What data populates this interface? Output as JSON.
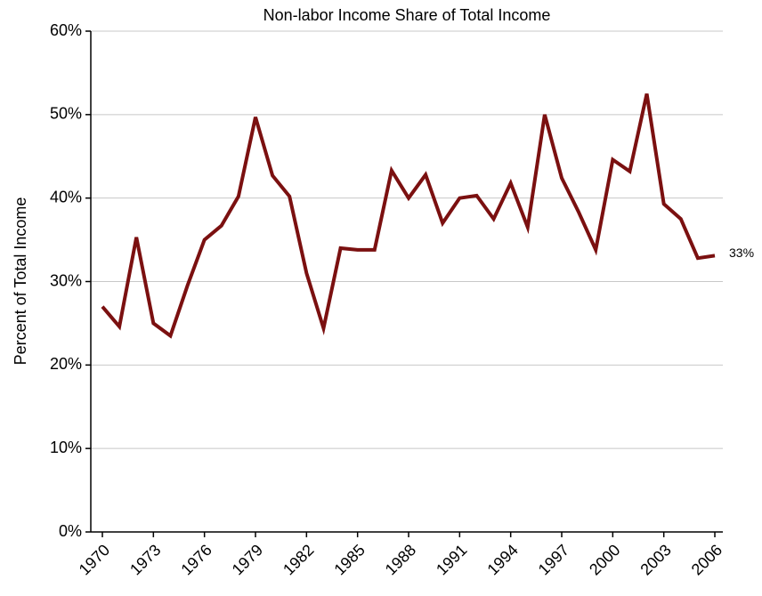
{
  "chart_data": {
    "type": "line",
    "title": "Non-labor Income Share of Total Income",
    "y_label": "Percent of Total Income",
    "x": [
      1970,
      1971,
      1972,
      1973,
      1974,
      1975,
      1976,
      1977,
      1978,
      1979,
      1980,
      1981,
      1982,
      1983,
      1984,
      1985,
      1986,
      1987,
      1988,
      1989,
      1990,
      1991,
      1992,
      1993,
      1994,
      1995,
      1996,
      1997,
      1998,
      1999,
      2000,
      2001,
      2002,
      2003,
      2004,
      2005,
      2006
    ],
    "series": [
      {
        "color": "#7b1010",
        "values": [
          27.0,
          24.6,
          35.3,
          25.0,
          23.5,
          29.5,
          35.0,
          36.7,
          40.2,
          49.7,
          42.7,
          40.2,
          31.0,
          24.4,
          34.0,
          33.8,
          33.8,
          43.3,
          40.0,
          42.8,
          37.0,
          40.0,
          40.3,
          37.5,
          41.8,
          36.5,
          50.0,
          42.4,
          38.3,
          33.8,
          44.6,
          43.2,
          52.5,
          39.3,
          37.5,
          32.8,
          33.1
        ],
        "value_labels": [
          null,
          null,
          null,
          null,
          null,
          null,
          null,
          null,
          null,
          null,
          null,
          null,
          null,
          null,
          null,
          null,
          null,
          null,
          null,
          null,
          null,
          null,
          null,
          null,
          null,
          null,
          null,
          null,
          null,
          null,
          null,
          null,
          null,
          null,
          null,
          null,
          "33%"
        ]
      }
    ],
    "xlim": [
      1969.32,
      2006.47
    ],
    "xticks": [
      1970,
      1973,
      1976,
      1979,
      1982,
      1985,
      1988,
      1991,
      1994,
      1997,
      2000,
      2003,
      2006
    ],
    "ylim": [
      0,
      60
    ],
    "yticks": [
      {
        "value": 0,
        "label": "0%"
      },
      {
        "value": 10,
        "label": "10%"
      },
      {
        "value": 20,
        "label": "20%"
      },
      {
        "value": 30,
        "label": "30%"
      },
      {
        "value": 40,
        "label": "40%"
      },
      {
        "value": 50,
        "label": "50%"
      },
      {
        "value": 60,
        "label": "60%"
      }
    ],
    "grid": true
  }
}
